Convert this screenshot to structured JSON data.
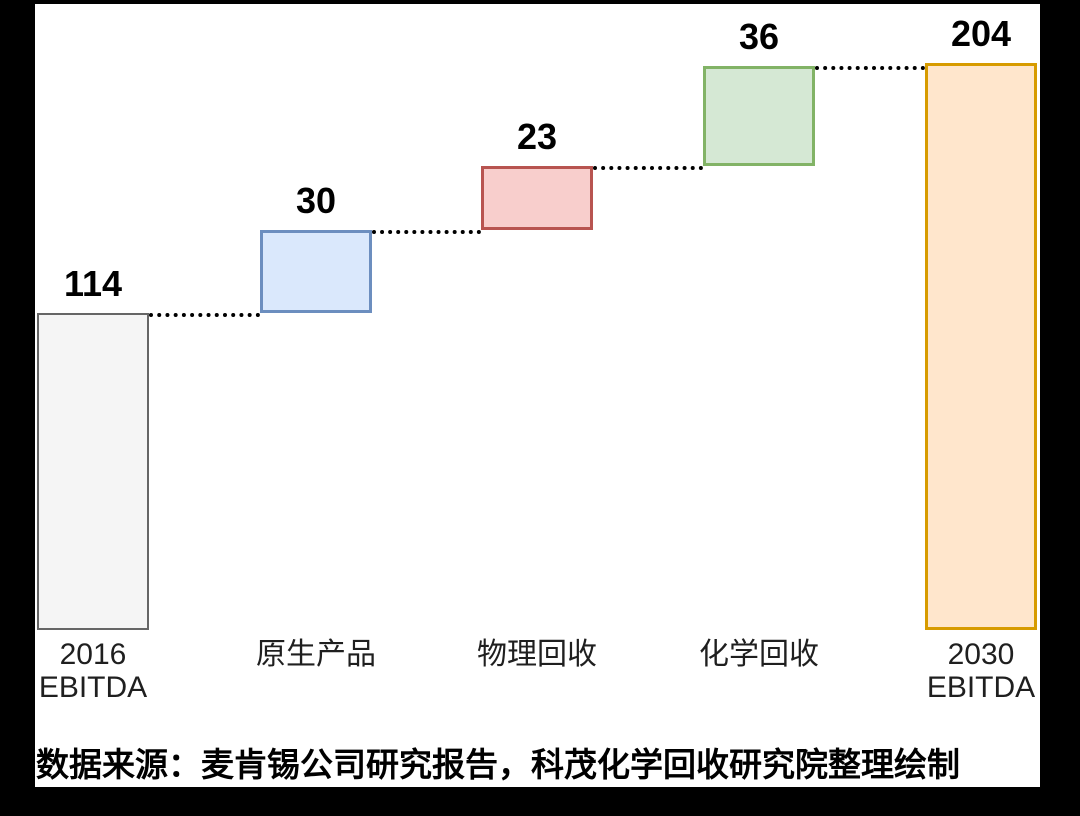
{
  "page": {
    "background_color": "#000000",
    "canvas_color": "#ffffff"
  },
  "chart_data": {
    "type": "bar",
    "subtype": "waterfall",
    "title": "",
    "xlabel": "",
    "ylabel": "",
    "ylim": [
      0,
      204
    ],
    "grid": false,
    "legend": false,
    "connector_style": "dotted",
    "categories": [
      "2016 EBITDA",
      "原生产品",
      "物理回收",
      "化学回收",
      "2030 EBITDA"
    ],
    "bars": [
      {
        "category": "2016 EBITDA",
        "axis_lines": [
          "2016",
          "EBITDA"
        ],
        "value": 114,
        "start": 0,
        "end": 114,
        "role": "total",
        "fill": "#f5f5f5",
        "stroke": "#666666",
        "stroke_width": 2
      },
      {
        "category": "原生产品",
        "axis_lines": [
          "原生产品"
        ],
        "value": 30,
        "start": 114,
        "end": 144,
        "role": "increase",
        "fill": "#dae8fc",
        "stroke": "#6c8ebf",
        "stroke_width": 3
      },
      {
        "category": "物理回收",
        "axis_lines": [
          "物理回收"
        ],
        "value": 23,
        "start": 144,
        "end": 167,
        "role": "increase",
        "fill": "#f8cecc",
        "stroke": "#b85450",
        "stroke_width": 3
      },
      {
        "category": "化学回收",
        "axis_lines": [
          "化学回收"
        ],
        "value": 36,
        "start": 167,
        "end": 203,
        "role": "increase",
        "fill": "#d5e8d4",
        "stroke": "#82b366",
        "stroke_width": 3
      },
      {
        "category": "2030 EBITDA",
        "axis_lines": [
          "2030",
          "EBITDA"
        ],
        "value": 204,
        "start": 0,
        "end": 204,
        "role": "total",
        "fill": "#ffe6cc",
        "stroke": "#d79b00",
        "stroke_width": 3
      }
    ]
  },
  "footer": {
    "source_text": "数据来源：麦肯锡公司研究报告，科茂化学回收研究院整理绘制"
  }
}
